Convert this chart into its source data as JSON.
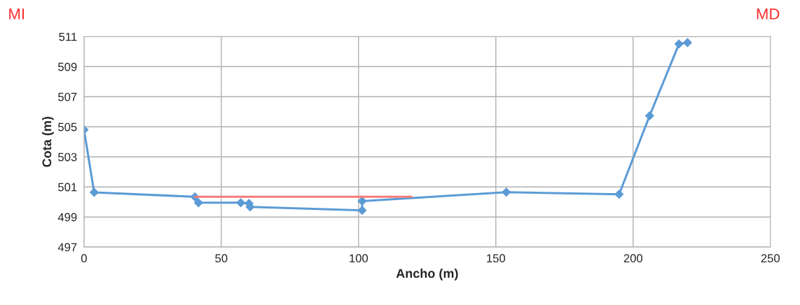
{
  "chart_data": {
    "type": "line",
    "xlabel": "Ancho (m)",
    "ylabel": "Cota (m)",
    "annotations": [
      "MI",
      "MD"
    ],
    "series": [
      {
        "color": "#5b9bd5",
        "marker": "diamond",
        "x": [
          0,
          3.7,
          40.4,
          41.7,
          57.1,
          60.1,
          60.5,
          101.3,
          101.3,
          153.8,
          194.9,
          206,
          216.7,
          219.8
        ],
        "values": [
          504.8,
          500.64,
          500.34,
          499.95,
          499.95,
          499.9,
          499.67,
          499.44,
          500.06,
          500.65,
          500.51,
          505.73,
          510.51,
          510.6
        ]
      },
      {
        "color": "#f47c7c",
        "marker": "none",
        "x": [
          40.4,
          119.3
        ],
        "values": [
          500.35,
          500.35
        ]
      }
    ],
    "xlim": [
      0,
      250
    ],
    "xticks": [
      0,
      50,
      100,
      150,
      200,
      250
    ],
    "ylim": [
      497,
      511
    ],
    "yticks": [
      497,
      499,
      501,
      503,
      505,
      507,
      509,
      511
    ],
    "grid": true
  }
}
